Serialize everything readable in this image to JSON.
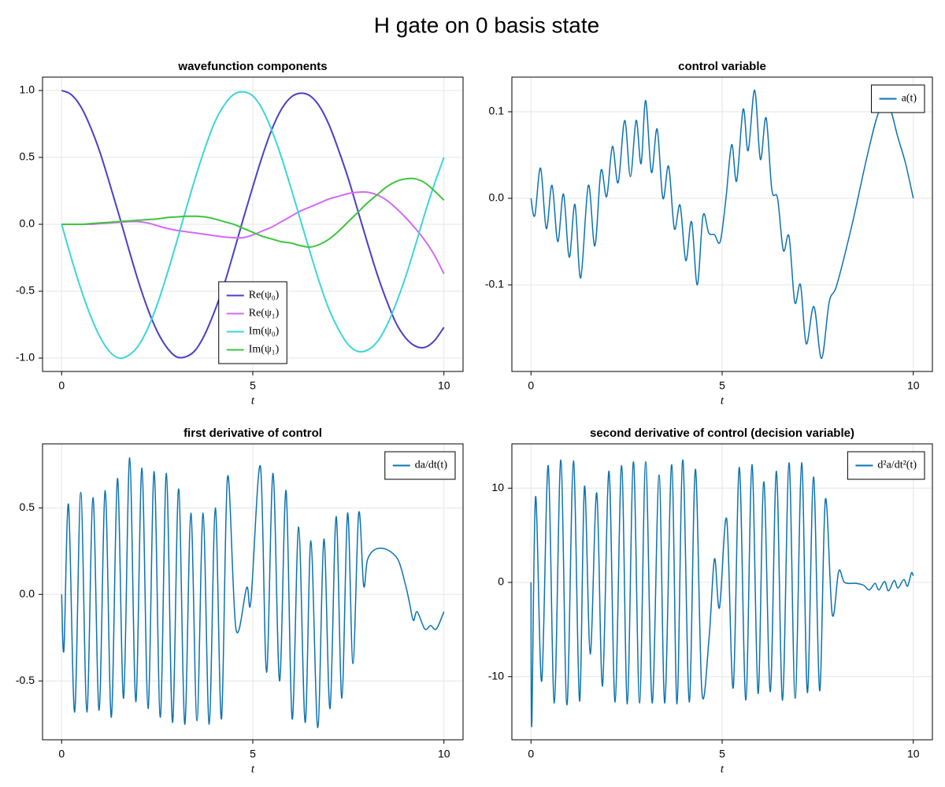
{
  "title": "H gate on 0 basis state",
  "chart_data": [
    {
      "type": "line",
      "title": "wavefunction components",
      "x_label": "t",
      "x": [
        0,
        0.25,
        0.5,
        0.75,
        1,
        1.25,
        1.5,
        1.75,
        2,
        2.25,
        2.5,
        2.75,
        3,
        3.25,
        3.5,
        3.75,
        4,
        4.25,
        4.5,
        4.75,
        5,
        5.25,
        5.5,
        5.75,
        6,
        6.25,
        6.5,
        6.75,
        7,
        7.25,
        7.5,
        7.75,
        8,
        8.25,
        8.5,
        8.75,
        9,
        9.25,
        9.5,
        9.75,
        10
      ],
      "series": [
        {
          "name": "Re(ψ₀)",
          "color": "#4b3fc9",
          "values": [
            1.0,
            0.97,
            0.88,
            0.73,
            0.54,
            0.31,
            0.07,
            -0.18,
            -0.42,
            -0.63,
            -0.8,
            -0.92,
            -0.99,
            -0.99,
            -0.94,
            -0.82,
            -0.65,
            -0.45,
            -0.21,
            0.04,
            0.28,
            0.51,
            0.71,
            0.86,
            0.95,
            0.98,
            0.96,
            0.88,
            0.74,
            0.55,
            0.34,
            0.1,
            -0.14,
            -0.37,
            -0.57,
            -0.74,
            -0.85,
            -0.91,
            -0.92,
            -0.87,
            -0.77
          ]
        },
        {
          "name": "Re(ψ₁)",
          "color": "#d36af5",
          "values": [
            0,
            0,
            0,
            0,
            0.005,
            0.01,
            0.015,
            0.02,
            0.02,
            0.01,
            -0.01,
            -0.03,
            -0.045,
            -0.055,
            -0.065,
            -0.075,
            -0.085,
            -0.095,
            -0.1,
            -0.1,
            -0.08,
            -0.05,
            -0.02,
            0.02,
            0.06,
            0.1,
            0.13,
            0.16,
            0.19,
            0.21,
            0.23,
            0.24,
            0.24,
            0.22,
            0.18,
            0.12,
            0.05,
            -0.03,
            -0.12,
            -0.23,
            -0.37
          ]
        },
        {
          "name": "Im(ψ₀)",
          "color": "#3cd6d6",
          "values": [
            0,
            -0.25,
            -0.48,
            -0.68,
            -0.84,
            -0.95,
            -1.0,
            -0.98,
            -0.91,
            -0.78,
            -0.6,
            -0.38,
            -0.14,
            0.11,
            0.35,
            0.57,
            0.76,
            0.89,
            0.97,
            0.99,
            0.96,
            0.86,
            0.7,
            0.5,
            0.27,
            0.03,
            -0.21,
            -0.44,
            -0.64,
            -0.79,
            -0.9,
            -0.95,
            -0.94,
            -0.88,
            -0.76,
            -0.59,
            -0.39,
            -0.16,
            0.08,
            0.3,
            0.5
          ]
        },
        {
          "name": "Im(ψ₁)",
          "color": "#3fc43f",
          "values": [
            0,
            0,
            0,
            0.005,
            0.01,
            0.015,
            0.02,
            0.025,
            0.03,
            0.035,
            0.04,
            0.05,
            0.055,
            0.06,
            0.06,
            0.055,
            0.04,
            0.02,
            0,
            -0.03,
            -0.06,
            -0.09,
            -0.11,
            -0.13,
            -0.14,
            -0.16,
            -0.17,
            -0.15,
            -0.11,
            -0.05,
            0.02,
            0.09,
            0.16,
            0.22,
            0.28,
            0.32,
            0.34,
            0.34,
            0.31,
            0.25,
            0.18
          ]
        }
      ],
      "xlim": [
        -0.5,
        10.5
      ],
      "xticks": [
        0,
        5,
        10
      ],
      "ylim": [
        -1.1,
        1.1
      ],
      "yticks": [
        {
          "value": -1,
          "label": "-1.0"
        },
        -0.5,
        {
          "value": 0,
          "label": "0.0"
        },
        0.5,
        {
          "value": 1,
          "label": "1.0"
        }
      ],
      "grid": true,
      "legend": "lower center"
    },
    {
      "type": "line",
      "title": "control variable",
      "x_label": "t",
      "x": [
        0,
        0.1,
        0.25,
        0.4,
        0.55,
        0.7,
        0.85,
        1.0,
        1.15,
        1.3,
        1.5,
        1.67,
        1.83,
        1.98,
        2.13,
        2.28,
        2.45,
        2.6,
        2.75,
        2.88,
        3.0,
        3.15,
        3.3,
        3.45,
        3.6,
        3.75,
        3.9,
        4.05,
        4.2,
        4.35,
        4.5,
        4.65,
        4.8,
        4.95,
        5.1,
        5.25,
        5.38,
        5.55,
        5.68,
        5.85,
        6.0,
        6.15,
        6.3,
        6.45,
        6.6,
        6.75,
        6.9,
        7.05,
        7.2,
        7.4,
        7.6,
        7.8,
        8.0,
        8.4,
        8.8,
        9.1,
        9.35,
        9.6,
        9.8,
        10
      ],
      "series": [
        {
          "name": "a(t)",
          "color": "#0c72b0",
          "values": [
            0,
            -0.02,
            0.035,
            -0.035,
            0.015,
            -0.05,
            0.005,
            -0.068,
            -0.007,
            -0.092,
            0.015,
            -0.055,
            0.032,
            0.002,
            0.06,
            0.018,
            0.09,
            0.025,
            0.09,
            0.04,
            0.113,
            0.03,
            0.08,
            0,
            0.037,
            -0.035,
            -0.008,
            -0.072,
            -0.027,
            -0.1,
            -0.02,
            -0.04,
            -0.042,
            -0.05,
            0,
            0.062,
            0.02,
            0.103,
            0.055,
            0.125,
            0.045,
            0.093,
            0.01,
            0,
            -0.06,
            -0.044,
            -0.12,
            -0.1,
            -0.168,
            -0.125,
            -0.185,
            -0.12,
            -0.1,
            -0.03,
            0.05,
            0.1,
            0.108,
            0.07,
            0.04,
            0
          ]
        }
      ],
      "xlim": [
        -0.5,
        10.5
      ],
      "xticks": [
        0,
        5,
        10
      ],
      "ylim": [
        -0.2,
        0.14
      ],
      "yticks": [
        -0.1,
        {
          "value": 0,
          "label": "0.0"
        },
        0.1
      ],
      "grid": true,
      "legend": "upper right"
    },
    {
      "type": "line",
      "title": "first derivative of control",
      "x_label": "t",
      "x": [
        0,
        0.06,
        0.18,
        0.34,
        0.5,
        0.66,
        0.82,
        0.98,
        1.14,
        1.3,
        1.46,
        1.62,
        1.78,
        1.94,
        2.1,
        2.26,
        2.42,
        2.58,
        2.74,
        2.9,
        3.06,
        3.22,
        3.38,
        3.54,
        3.7,
        3.86,
        4.02,
        4.18,
        4.34,
        4.56,
        4.84,
        4.95,
        5.2,
        5.36,
        5.53,
        5.7,
        5.87,
        6.03,
        6.2,
        6.37,
        6.52,
        6.7,
        6.86,
        7.02,
        7.18,
        7.33,
        7.48,
        7.62,
        7.77,
        7.9,
        8.0,
        8.2,
        8.5,
        8.8,
        9.0,
        9.1,
        9.2,
        9.3,
        9.5,
        9.65,
        9.8,
        10
      ],
      "series": [
        {
          "name": "da/dt(t)",
          "color": "#0c72b0",
          "values": [
            0,
            -0.32,
            0.52,
            -0.68,
            0.59,
            -0.68,
            0.56,
            -0.67,
            0.6,
            -0.71,
            0.67,
            -0.6,
            0.79,
            -0.62,
            0.73,
            -0.66,
            0.71,
            -0.71,
            0.7,
            -0.74,
            0.61,
            -0.75,
            0.47,
            -0.73,
            0.47,
            -0.75,
            0.5,
            -0.72,
            0.68,
            -0.2,
            0.04,
            -0.04,
            0.74,
            -0.45,
            0.7,
            -0.5,
            0.6,
            -0.72,
            0.39,
            -0.74,
            0.31,
            -0.77,
            0.32,
            -0.66,
            0.45,
            -0.6,
            0.47,
            -0.4,
            0.47,
            0.05,
            0.2,
            0.26,
            0.26,
            0.2,
            0.05,
            -0.05,
            -0.15,
            -0.1,
            -0.2,
            -0.18,
            -0.2,
            -0.1
          ]
        }
      ],
      "xlim": [
        -0.5,
        10.5
      ],
      "xticks": [
        0,
        5,
        10
      ],
      "ylim": [
        -0.84,
        0.87
      ],
      "yticks": [
        -0.5,
        {
          "value": 0,
          "label": "0.0"
        },
        0.5
      ],
      "grid": true,
      "legend": "upper right"
    },
    {
      "type": "line",
      "title": "second derivative of control (decision variable)",
      "x_label": "t",
      "x": [
        0,
        0.02,
        0.12,
        0.28,
        0.45,
        0.61,
        0.78,
        0.94,
        1.11,
        1.27,
        1.4,
        1.55,
        1.72,
        1.87,
        2.04,
        2.2,
        2.37,
        2.52,
        2.68,
        2.84,
        3.0,
        3.17,
        3.35,
        3.5,
        3.68,
        3.82,
        3.97,
        4.14,
        4.3,
        4.47,
        4.66,
        4.8,
        4.93,
        5.12,
        5.29,
        5.45,
        5.62,
        5.78,
        5.94,
        6.09,
        6.26,
        6.42,
        6.58,
        6.75,
        6.91,
        7.08,
        7.23,
        7.39,
        7.55,
        7.7,
        7.88,
        8.05,
        8.2,
        8.5,
        8.7,
        8.85,
        9.0,
        9.1,
        9.25,
        9.35,
        9.5,
        9.6,
        9.75,
        9.85,
        9.95,
        10
      ],
      "series": [
        {
          "name": "d²a/dt²(t)",
          "color": "#0c72b0",
          "values": [
            0,
            -15.2,
            9.1,
            -10.5,
            12.4,
            -12.8,
            13.0,
            -13.0,
            12.9,
            -12.6,
            10.2,
            -7.6,
            9.5,
            -11.0,
            11.8,
            -12.7,
            12.4,
            -12.9,
            12.8,
            -12.8,
            12.8,
            -12.8,
            11.4,
            -12.8,
            12.5,
            -12.9,
            13.0,
            -12.7,
            12.0,
            -11.6,
            -5.8,
            2.5,
            -2.7,
            6.7,
            -11.2,
            12.2,
            -12.5,
            12.5,
            -11.8,
            10.7,
            -11.6,
            11.8,
            -12.5,
            12.7,
            -12.3,
            12.7,
            -11.7,
            11.2,
            -11.5,
            8.8,
            -3.4,
            1.2,
            0,
            -0.1,
            -0.3,
            -0.8,
            -0.1,
            -0.8,
            0.1,
            -0.9,
            0.2,
            -0.6,
            0.3,
            -0.4,
            1.0,
            0.7
          ]
        }
      ],
      "xlim": [
        -0.5,
        10.5
      ],
      "xticks": [
        0,
        5,
        10
      ],
      "ylim": [
        -16.7,
        14.7
      ],
      "yticks": [
        -10,
        0,
        10
      ],
      "grid": true,
      "legend": "upper right"
    }
  ]
}
